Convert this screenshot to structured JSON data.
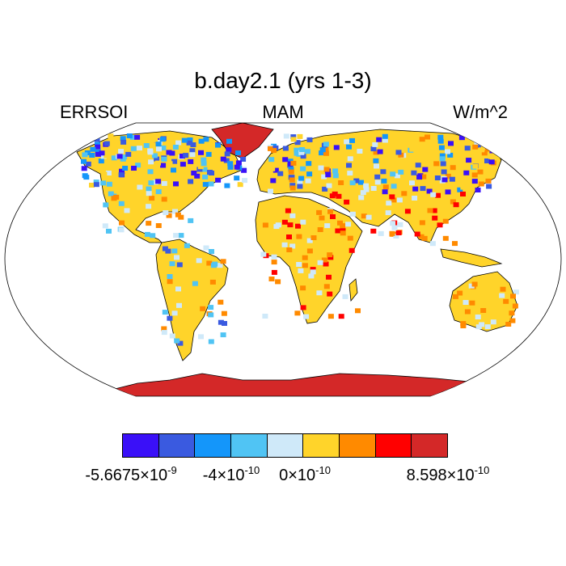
{
  "title": "b.day2.1 (yrs 1-3)",
  "left_label": "ERRSOI",
  "center_label": "MAM",
  "right_label": "W/m^2",
  "colorbar": {
    "colors": [
      "#3a10f8",
      "#3a5ae0",
      "#1496fa",
      "#50c4f4",
      "#cfe9f9",
      "#ffd42a",
      "#ff8a00",
      "#ff0000",
      "#d42828"
    ],
    "ticks": [
      {
        "mantissa": "-5.6675",
        "times": "×",
        "base": "10",
        "exp": "-9"
      },
      {
        "mantissa": "-4",
        "times": "×",
        "base": "10",
        "exp": "-10"
      },
      {
        "mantissa": "0",
        "times": "×",
        "base": "10",
        "exp": "-10"
      },
      {
        "mantissa": "8.598",
        "times": "×",
        "base": "10",
        "exp": "-10"
      }
    ]
  }
}
